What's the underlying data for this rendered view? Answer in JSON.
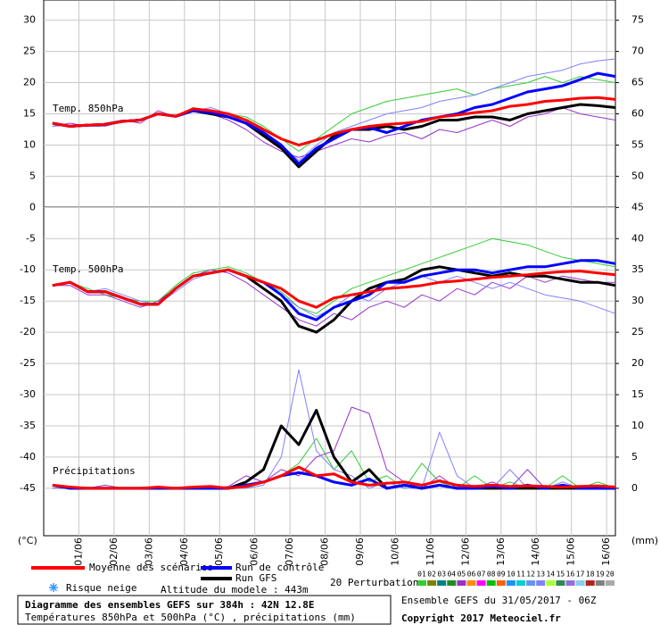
{
  "chart_data": {
    "type": "line",
    "title": "Diagramme des ensembles GEFS sur 384h : 42N 12.8E",
    "subtitle": "Températures 850hPa et 500hPa (°C) , précipitations (mm)",
    "run_info": "Ensemble GEFS du 31/05/2017 - 06Z",
    "copyright": "Copyright 2017 Meteociel.fr",
    "y_axis_label": "(°C)",
    "y2_axis_label": "(mm)",
    "snow_label": "Risque neige",
    "altitude_label": "Altitude du modele : 443m",
    "grid": true,
    "x": [
      0.25,
      0.75,
      1.25,
      1.75,
      2.25,
      2.75,
      3.25,
      3.75,
      4.25,
      4.75,
      5.25,
      5.75,
      6.25,
      6.75,
      7.25,
      7.75,
      8.25,
      8.75,
      9.25,
      9.75,
      10.25,
      10.75,
      11.25,
      11.75,
      12.25,
      12.75,
      13.25,
      13.75,
      14.25,
      14.75,
      15.25,
      15.75,
      16.25
    ],
    "xlim": [
      0,
      16.25
    ],
    "xticks": [
      {
        "value": 1,
        "label": "01/06"
      },
      {
        "value": 2,
        "label": "02/06"
      },
      {
        "value": 3,
        "label": "03/06"
      },
      {
        "value": 4,
        "label": "04/06"
      },
      {
        "value": 5,
        "label": "05/06"
      },
      {
        "value": 6,
        "label": "06/06"
      },
      {
        "value": 7,
        "label": "07/06"
      },
      {
        "value": 8,
        "label": "08/06"
      },
      {
        "value": 9,
        "label": "09/06"
      },
      {
        "value": 10,
        "label": "10/06"
      },
      {
        "value": 11,
        "label": "11/06"
      },
      {
        "value": 12,
        "label": "12/06"
      },
      {
        "value": 13,
        "label": "13/06"
      },
      {
        "value": 14,
        "label": "14/06"
      },
      {
        "value": 15,
        "label": "15/06"
      },
      {
        "value": 16,
        "label": "16/06"
      }
    ],
    "ylim": [
      -52.6,
      33.1
    ],
    "yticks": [
      30,
      25,
      20,
      15,
      10,
      5,
      0,
      -5,
      -10,
      -15,
      -20,
      -25,
      -30,
      -35,
      -40,
      -45
    ],
    "y2lim": [
      -7.6,
      78.1
    ],
    "y2ticks": [
      75,
      70,
      65,
      60,
      55,
      50,
      45,
      40,
      35,
      30,
      25,
      20,
      15,
      10,
      5,
      0
    ],
    "panels": [
      {
        "label": "Temp. 850hPa",
        "series": [
          {
            "name": "01",
            "color": "#32cd32",
            "values": [
              13.5,
              13,
              13,
              13.5,
              14,
              14,
              15,
              14.5,
              16,
              15.5,
              15,
              14.5,
              13,
              11,
              9,
              11,
              13,
              15,
              16,
              17,
              17.5,
              18,
              18.5,
              19,
              18,
              19,
              19.5,
              20,
              21,
              20,
              21,
              20.5,
              20
            ]
          },
          {
            "name": "05",
            "color": "#9932cc",
            "values": [
              13,
              13.5,
              13,
              13.5,
              14,
              13.5,
              15.5,
              14.5,
              15.5,
              15,
              14,
              12.5,
              10.5,
              9,
              8,
              9,
              10,
              11,
              10.5,
              11.5,
              12,
              11,
              12.5,
              12,
              13,
              14,
              13,
              14.5,
              15,
              16,
              15,
              14.5,
              14
            ]
          },
          {
            "name": "13",
            "color": "#8080ff",
            "values": [
              13,
              13.2,
              13,
              13,
              13.8,
              14.2,
              15,
              14.8,
              15.5,
              16,
              15,
              13.5,
              12,
              10,
              7.5,
              10,
              12,
              13,
              14,
              15,
              15.5,
              16,
              17,
              17.5,
              18,
              19,
              20,
              21,
              21.5,
              22,
              23,
              23.5,
              23.8
            ]
          },
          {
            "name": "Run GFS",
            "color": "#000000",
            "values": [
              13.5,
              13,
              13.2,
              13.3,
              13.8,
              14,
              15,
              14.6,
              15.5,
              15,
              14.5,
              13.5,
              11.5,
              9.5,
              6.5,
              9,
              11.5,
              12.5,
              12.5,
              13,
              12.5,
              13,
              14,
              14,
              14.5,
              14.5,
              14,
              15,
              15.5,
              16,
              16.5,
              16.3,
              16
            ]
          },
          {
            "name": "Run de contrôle",
            "color": "#0000ff",
            "values": [
              13.5,
              13,
              13.2,
              13.3,
              13.8,
              14,
              15,
              14.6,
              15.5,
              15.2,
              14.5,
              13.5,
              12,
              10,
              7,
              9.5,
              11,
              12.5,
              12.8,
              12,
              13,
              14,
              14.5,
              15,
              16,
              16.5,
              17.5,
              18.5,
              19,
              19.5,
              20.5,
              21.5,
              21
            ]
          },
          {
            "name": "Moyenne des scénarios",
            "color": "#ff0000",
            "values": [
              13.5,
              13,
              13.2,
              13.3,
              13.8,
              14,
              15,
              14.6,
              15.8,
              15.5,
              15,
              14,
              12.5,
              11,
              10,
              10.8,
              11.8,
              12.5,
              13,
              13.3,
              13.5,
              13.8,
              14.5,
              14.8,
              15.2,
              15.5,
              16.2,
              16.5,
              17,
              17.2,
              17.5,
              17.6,
              17.3
            ]
          }
        ]
      },
      {
        "label": "Temp. 500hPa",
        "series": [
          {
            "name": "01",
            "color": "#32cd32",
            "values": [
              -12.5,
              -12,
              -13,
              -14,
              -14.5,
              -15,
              -15,
              -12.5,
              -10.5,
              -10,
              -9.5,
              -10.5,
              -12,
              -13.5,
              -16,
              -17,
              -15,
              -13,
              -12,
              -11,
              -10,
              -9,
              -8,
              -7,
              -6,
              -5,
              -5.5,
              -6,
              -7,
              -8,
              -8.5,
              -9,
              -9.5
            ]
          },
          {
            "name": "05",
            "color": "#9932cc",
            "values": [
              -12.5,
              -12.5,
              -14,
              -14,
              -15,
              -16,
              -15,
              -13,
              -11,
              -10,
              -10.5,
              -12,
              -14,
              -16,
              -18,
              -19,
              -17,
              -18,
              -16,
              -15,
              -16,
              -14,
              -15,
              -13,
              -14,
              -12,
              -13,
              -11,
              -12,
              -11,
              -11.5,
              -12,
              -12
            ]
          },
          {
            "name": "13",
            "color": "#8080ff",
            "values": [
              -12.5,
              -12,
              -13.5,
              -13,
              -14,
              -15,
              -15.5,
              -13.5,
              -11.5,
              -10.5,
              -10,
              -11,
              -12,
              -14,
              -16,
              -17.5,
              -16,
              -14,
              -15,
              -13,
              -12,
              -11,
              -12,
              -11,
              -12,
              -13,
              -12,
              -13,
              -14,
              -14.5,
              -15,
              -16,
              -17
            ]
          },
          {
            "name": "Run GFS",
            "color": "#000000",
            "values": [
              -12.5,
              -12,
              -13.5,
              -13.5,
              -14.5,
              -15.5,
              -15.5,
              -13,
              -11,
              -10.5,
              -10,
              -11,
              -13,
              -15,
              -19,
              -20,
              -18,
              -15,
              -13,
              -12,
              -11.5,
              -10,
              -9.5,
              -10,
              -10.5,
              -11,
              -10.5,
              -11,
              -11,
              -11.5,
              -12,
              -12,
              -12.5
            ]
          },
          {
            "name": "Run de contrôle",
            "color": "#0000ff",
            "values": [
              -12.5,
              -12,
              -13.5,
              -13.5,
              -14.5,
              -15.5,
              -15.5,
              -13,
              -11,
              -10.5,
              -10,
              -11,
              -12,
              -14,
              -17,
              -18,
              -16,
              -15,
              -14,
              -12,
              -12,
              -11,
              -10.5,
              -10,
              -10,
              -10.5,
              -10,
              -9.5,
              -9.5,
              -9,
              -8.5,
              -8.5,
              -9
            ]
          },
          {
            "name": "Moyenne des scénarios",
            "color": "#ff0000",
            "values": [
              -12.5,
              -12,
              -13.5,
              -13.5,
              -14.5,
              -15.5,
              -15.5,
              -13,
              -11,
              -10.5,
              -10,
              -11,
              -12,
              -13,
              -15,
              -16,
              -14.5,
              -14,
              -13.5,
              -13,
              -12.8,
              -12.5,
              -12,
              -11.8,
              -11.5,
              -11.2,
              -11,
              -10.8,
              -10.5,
              -10.3,
              -10.2,
              -10.5,
              -10.8
            ]
          }
        ]
      },
      {
        "label": "Précipitations",
        "series": [
          {
            "name": "01",
            "color": "#32cd32",
            "axis": "y2",
            "values": [
              0,
              0,
              0,
              0,
              0,
              0,
              0,
              0,
              0,
              0,
              0,
              0,
              1,
              2,
              4,
              8,
              3,
              6,
              1,
              2,
              0,
              4,
              1,
              0,
              2,
              0,
              1,
              0,
              0,
              2,
              0,
              1,
              0
            ]
          },
          {
            "name": "05",
            "color": "#9932cc",
            "axis": "y2",
            "values": [
              0,
              0,
              0,
              0.5,
              0,
              0,
              0,
              0,
              0,
              0,
              0.3,
              2,
              1,
              3,
              2,
              5,
              6,
              13,
              12,
              3,
              1,
              0,
              2,
              0,
              0,
              1,
              0,
              3,
              0,
              0,
              0,
              0,
              0
            ]
          },
          {
            "name": "13",
            "color": "#8080ff",
            "axis": "y2",
            "values": [
              0,
              0,
              0,
              0,
              0,
              0,
              0,
              0,
              0,
              0,
              0,
              0,
              0.5,
              5,
              19,
              6,
              3,
              2,
              0,
              1,
              0,
              0,
              9,
              2,
              0,
              0,
              3,
              0,
              0,
              1,
              0,
              0,
              0
            ]
          },
          {
            "name": "Run GFS",
            "color": "#000000",
            "axis": "y2",
            "values": [
              0.5,
              0,
              0,
              0,
              0,
              0,
              0,
              0,
              0,
              0,
              0,
              1,
              3,
              10,
              7,
              12.5,
              5,
              1,
              3,
              0,
              0.5,
              0,
              0.5,
              0,
              0,
              0,
              0,
              0,
              0,
              0,
              0,
              0,
              0
            ]
          },
          {
            "name": "Run de contrôle",
            "color": "#0000ff",
            "axis": "y2",
            "values": [
              0.5,
              0,
              0,
              0,
              0,
              0,
              0,
              0,
              0,
              0,
              0,
              0.5,
              1,
              2,
              2.5,
              2,
              1,
              0.5,
              1.5,
              0,
              0.5,
              0,
              0.5,
              0,
              0,
              0.3,
              0,
              0.5,
              0,
              0.5,
              0,
              0,
              0
            ]
          },
          {
            "name": "Moyenne des scénarios",
            "color": "#ff0000",
            "axis": "y2",
            "values": [
              0.5,
              0.2,
              0,
              0,
              0,
              0,
              0.2,
              0,
              0.2,
              0.3,
              0,
              0.3,
              1,
              2,
              3.4,
              2,
              2.3,
              1,
              0.5,
              0.8,
              1,
              0.5,
              1.2,
              0.5,
              0.3,
              0.5,
              0.3,
              0.4,
              0.3,
              0.2,
              0.3,
              0.4,
              0.2
            ]
          }
        ]
      }
    ],
    "perturbations": {
      "label": "20 Perturbations",
      "names": [
        "01",
        "02",
        "03",
        "04",
        "05",
        "06",
        "07",
        "08",
        "09",
        "10",
        "11",
        "12",
        "13",
        "14",
        "15",
        "16",
        "17",
        "18",
        "19",
        "20"
      ],
      "colors": [
        "#32cd32",
        "#808000",
        "#008080",
        "#228b22",
        "#9932cc",
        "#ff8c00",
        "#ff00ff",
        "#00c000",
        "#ff6000",
        "#1e90ff",
        "#00ced1",
        "#6495ed",
        "#8080ff",
        "#adff2f",
        "#2e8b57",
        "#9370db",
        "#87ceeb",
        "#b22222",
        "#808080",
        "#a9a9a9"
      ]
    }
  }
}
